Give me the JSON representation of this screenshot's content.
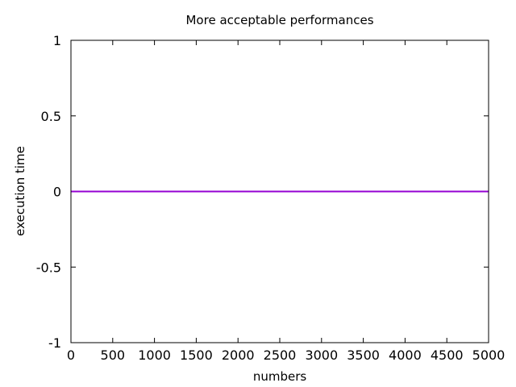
{
  "chart_data": {
    "type": "line",
    "title": "More acceptable performances",
    "xlabel": "numbers",
    "ylabel": "execution time",
    "xlim": [
      0,
      5000
    ],
    "ylim": [
      -1,
      1
    ],
    "x_ticks": [
      0,
      500,
      1000,
      1500,
      2000,
      2500,
      3000,
      3500,
      4000,
      4500,
      5000
    ],
    "y_ticks": [
      -1,
      -0.5,
      0,
      0.5,
      1
    ],
    "x_tick_labels": [
      "0",
      "500",
      "1000",
      "1500",
      "2000",
      "2500",
      "3000",
      "3500",
      "4000",
      "4500",
      "5000"
    ],
    "y_tick_labels": [
      "-1",
      "-0.5",
      "0",
      "0.5",
      "1"
    ],
    "grid": false,
    "legend": "none",
    "series": [
      {
        "color": "#9400d3",
        "x": [
          0,
          5000
        ],
        "y": [
          0,
          0
        ]
      }
    ]
  }
}
